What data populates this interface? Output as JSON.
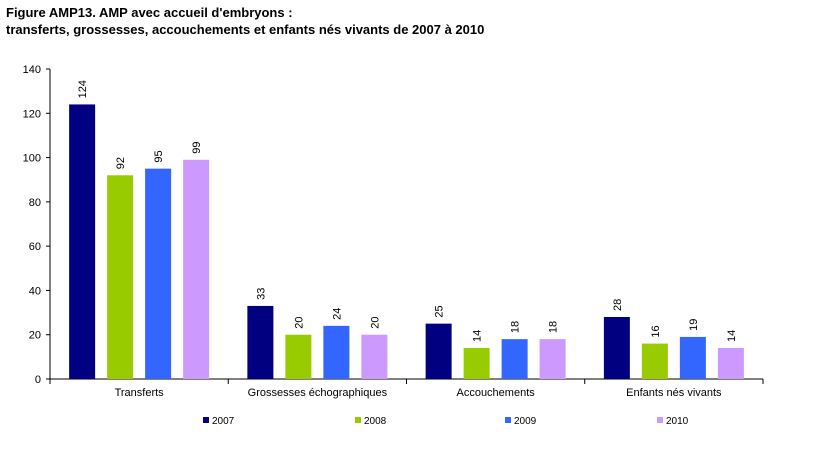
{
  "title_line1": "Figure AMP13. AMP avec accueil d'embryons :",
  "title_line2": "transferts, grossesses, accouchements et enfants nés vivants de 2007 à 2010",
  "chart_data": {
    "type": "bar",
    "categories": [
      "Transferts",
      "Grossesses échographiques",
      "Accouchements",
      "Enfants nés vivants"
    ],
    "series": [
      {
        "name": "2007",
        "color": "#000080",
        "values": [
          124,
          33,
          25,
          28
        ]
      },
      {
        "name": "2008",
        "color": "#99cc00",
        "values": [
          92,
          20,
          14,
          16
        ]
      },
      {
        "name": "2009",
        "color": "#3366ff",
        "values": [
          95,
          24,
          18,
          19
        ]
      },
      {
        "name": "2010",
        "color": "#cc99ff",
        "values": [
          99,
          20,
          18,
          14
        ]
      }
    ],
    "ylim": [
      0,
      140
    ],
    "yticks": [
      0,
      20,
      40,
      60,
      80,
      100,
      120,
      140
    ],
    "grid": false,
    "legend_position": "bottom"
  }
}
